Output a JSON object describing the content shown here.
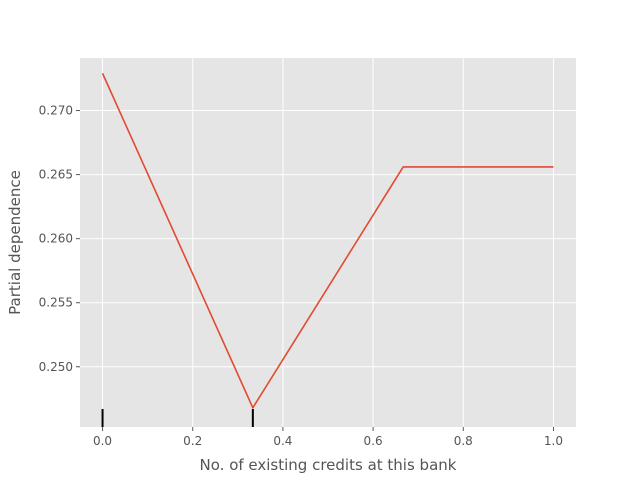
{
  "chart_data": {
    "type": "line",
    "title": "",
    "xlabel": "No. of existing credits at this bank",
    "ylabel": "Partial dependence",
    "xlim": [
      -0.05,
      1.05
    ],
    "ylim": [
      0.2453,
      0.2741
    ],
    "xticks": [
      0.0,
      0.2,
      0.4,
      0.6,
      0.8,
      1.0
    ],
    "xtick_labels": [
      "0.0",
      "0.2",
      "0.4",
      "0.6",
      "0.8",
      "1.0"
    ],
    "yticks": [
      0.25,
      0.255,
      0.26,
      0.265,
      0.27
    ],
    "ytick_labels": [
      "0.250",
      "0.255",
      "0.260",
      "0.265",
      "0.270"
    ],
    "grid": true,
    "series": [
      {
        "x": [
          0.0,
          0.3333,
          0.6667,
          1.0
        ],
        "y": [
          0.2729,
          0.2468,
          0.2656,
          0.2656
        ],
        "color": "#E24A33"
      }
    ],
    "rug_deciles": [
      0.0,
      0.3333
    ],
    "colors": {
      "plot_bg": "#E5E5E5",
      "grid": "#FFFFFF",
      "line": "#E24A33",
      "text": "#555555",
      "rug": "#000000"
    }
  }
}
